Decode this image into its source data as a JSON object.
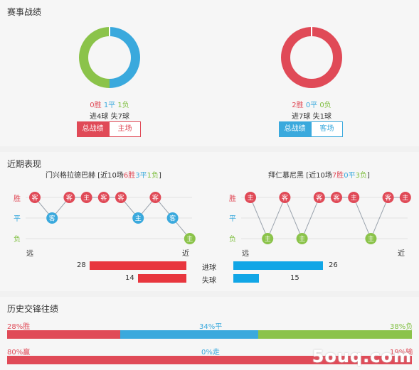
{
  "summary": {
    "title": "赛事战绩",
    "home": {
      "win": "0胜",
      "draw": "1平",
      "loss": "1负",
      "goals": "进4球",
      "conceded": "失7球",
      "tab_total": "总战绩",
      "tab_side": "主场",
      "ring": [
        {
          "value": 50,
          "color": "#3aa9dd"
        },
        {
          "value": 50,
          "color": "#8bc34a"
        }
      ]
    },
    "away": {
      "win": "2胜",
      "draw": "0平",
      "loss": "0负",
      "goals": "进7球",
      "conceded": "失1球",
      "tab_total": "总战绩",
      "tab_side": "客场",
      "ring": [
        {
          "value": 100,
          "color": "#e04a57"
        }
      ]
    }
  },
  "recent": {
    "title": "近期表现",
    "labels": {
      "win": "胜",
      "draw": "平",
      "loss": "负",
      "far": "远",
      "near": "近"
    },
    "home": {
      "name": "门兴格拉德巴赫",
      "summary": {
        "prefix": "[近10场",
        "w": "6胜",
        "d": "3平",
        "l": "1负",
        "suffix": "]"
      },
      "results": [
        {
          "r": "W",
          "v": "客"
        },
        {
          "r": "D",
          "v": "客"
        },
        {
          "r": "W",
          "v": "客"
        },
        {
          "r": "W",
          "v": "主"
        },
        {
          "r": "W",
          "v": "客"
        },
        {
          "r": "W",
          "v": "客"
        },
        {
          "r": "D",
          "v": "主"
        },
        {
          "r": "W",
          "v": "客"
        },
        {
          "r": "D",
          "v": "客"
        },
        {
          "r": "L",
          "v": "主"
        }
      ]
    },
    "away": {
      "name": "拜仁慕尼黑",
      "summary": {
        "prefix": "[近10场",
        "w": "7胜",
        "d": "0平",
        "l": "3负",
        "suffix": "]"
      },
      "results": [
        {
          "r": "W",
          "v": "主"
        },
        {
          "r": "L",
          "v": "主"
        },
        {
          "r": "W",
          "v": "客"
        },
        {
          "r": "L",
          "v": "主"
        },
        {
          "r": "W",
          "v": "客"
        },
        {
          "r": "W",
          "v": "客"
        },
        {
          "r": "W",
          "v": "主"
        },
        {
          "r": "L",
          "v": "主"
        },
        {
          "r": "W",
          "v": "客"
        },
        {
          "r": "W",
          "v": "主"
        }
      ]
    },
    "goals": {
      "label": "进球",
      "home": 28,
      "away": 26
    },
    "conceded": {
      "label": "失球",
      "home": 14,
      "away": 15
    },
    "goal_scale_max": 28
  },
  "history": {
    "title": "历史交锋往绩",
    "row1": {
      "left": "28%胜",
      "mid": "34%平",
      "right": "38%负",
      "segments": [
        {
          "value": 28,
          "color": "#e04a57"
        },
        {
          "value": 34,
          "color": "#3aa9dd"
        },
        {
          "value": 38,
          "color": "#8bc34a"
        }
      ]
    },
    "row2": {
      "left": "80%赢",
      "mid": "0%走",
      "right": "19%输",
      "segments": [
        {
          "value": 80,
          "color": "#e04a57"
        },
        {
          "value": 0,
          "color": "#3aa9dd"
        },
        {
          "value": 19,
          "color": "#e04a57"
        }
      ]
    }
  },
  "watermark": "5ouq.com",
  "colors": {
    "win": "#e04a57",
    "draw": "#3aa9dd",
    "loss": "#8bc34a",
    "bar_red": "#e8363e",
    "bar_blue": "#11a6e6"
  }
}
